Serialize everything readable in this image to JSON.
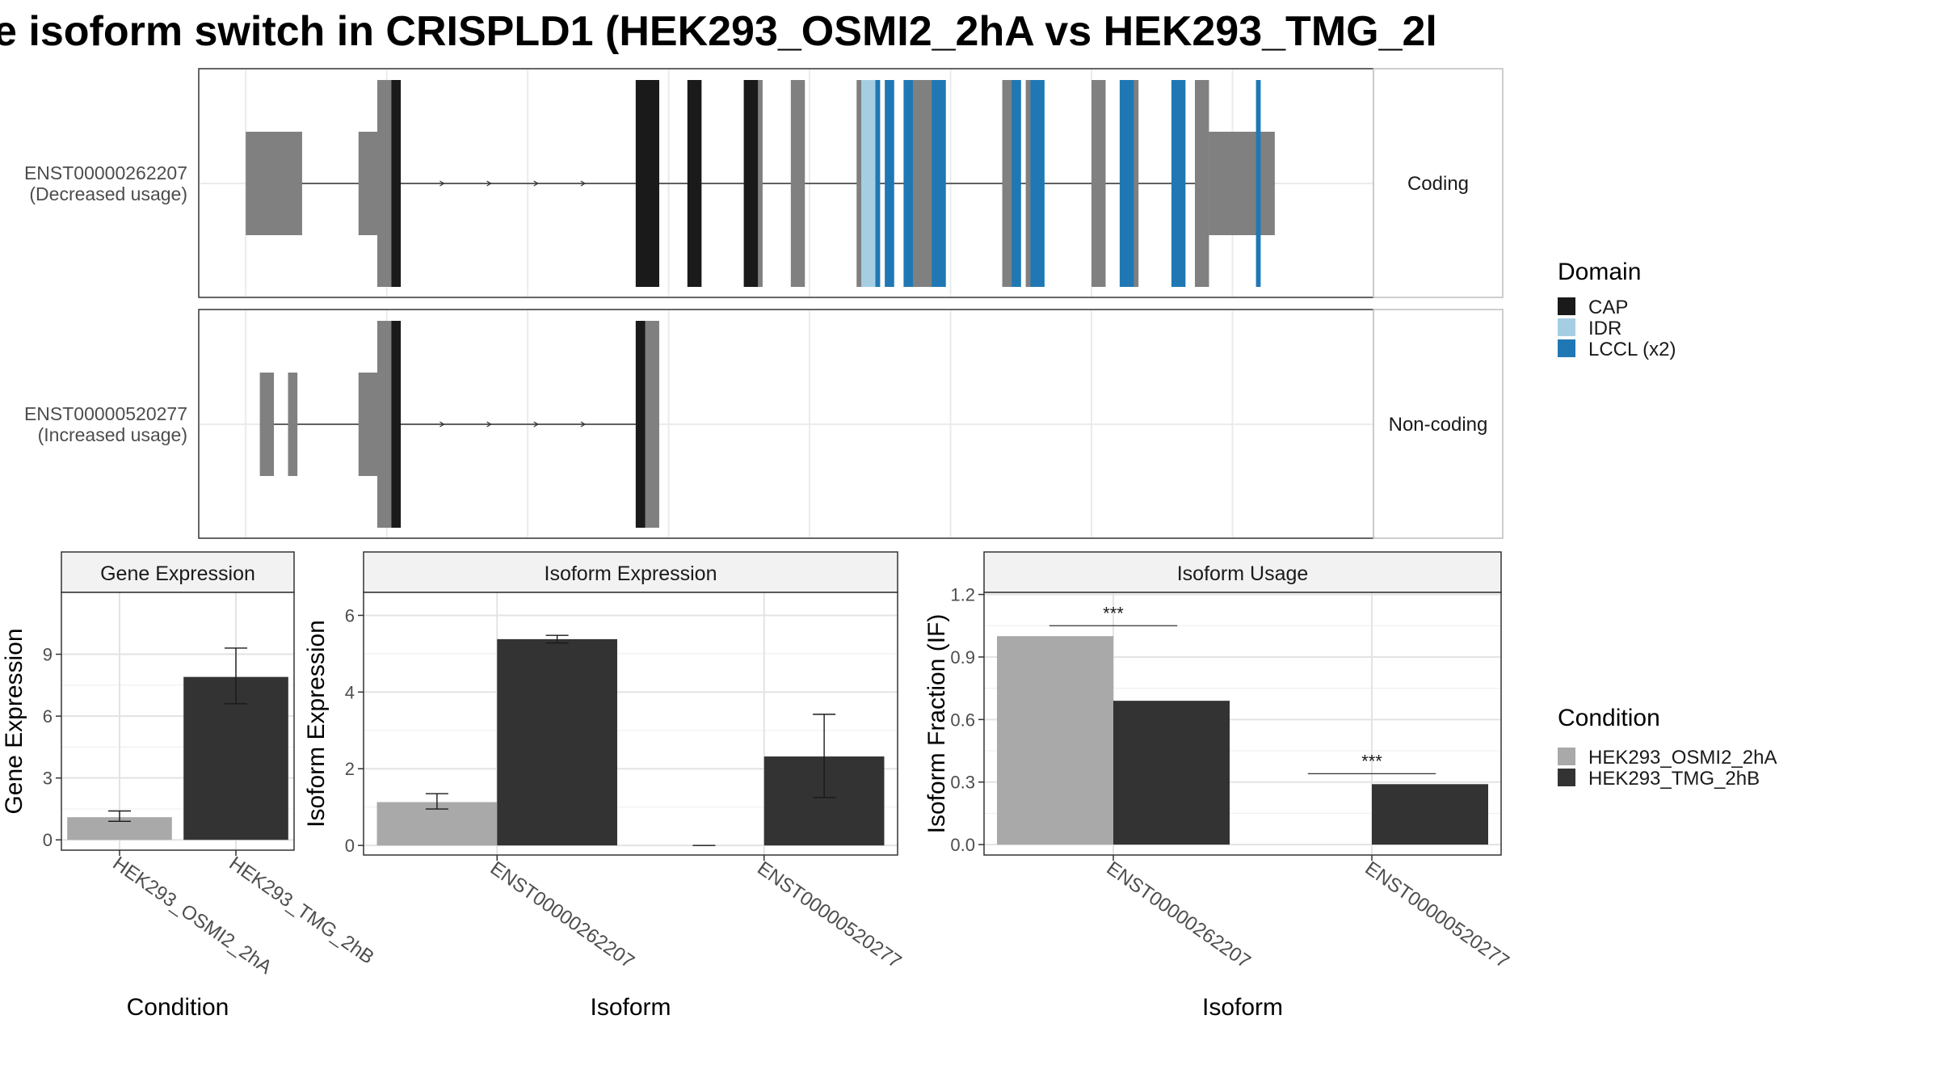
{
  "title": "e isoform switch in CRISPLD1 (HEK293_OSMI2_2hA vs HEK293_TMG_2l",
  "colors": {
    "cap": "#1a1a1a",
    "idr": "#a6cee3",
    "lccl": "#1f78b4",
    "exon": "#808080",
    "condition_a": "#a9a9a9",
    "condition_b": "#333333"
  },
  "structure": {
    "transcripts": [
      {
        "id": "ENST00000262207",
        "note": "(Decreased usage)",
        "strip": "Coding",
        "exons": [
          [
            100,
            112,
            "utr"
          ],
          [
            124,
            128,
            "utr"
          ],
          [
            128,
            132,
            "cds"
          ],
          [
            183,
            188,
            "cds"
          ],
          [
            194,
            197,
            "cds"
          ],
          [
            206,
            210,
            "cds"
          ],
          [
            216,
            219,
            "cds"
          ],
          [
            230,
            235,
            "cds"
          ],
          [
            241,
            247,
            "cds"
          ],
          [
            261,
            264,
            "cds"
          ],
          [
            266,
            269,
            "cds"
          ],
          [
            280,
            283,
            "cds"
          ],
          [
            286,
            290,
            "cds"
          ],
          [
            302,
            305,
            "cds"
          ],
          [
            305,
            319,
            "utr"
          ]
        ],
        "domains": [
          [
            131,
            133,
            "CAP"
          ],
          [
            183,
            188,
            "CAP"
          ],
          [
            194,
            197,
            "CAP"
          ],
          [
            206,
            209,
            "CAP"
          ],
          [
            231,
            234,
            "IDR"
          ],
          [
            234,
            235,
            "LCCL (x2)"
          ],
          [
            236,
            238,
            "LCCL (x2)"
          ],
          [
            240,
            242,
            "LCCL (x2)"
          ],
          [
            246,
            249,
            "LCCL (x2)"
          ],
          [
            263,
            265,
            "LCCL (x2)"
          ],
          [
            267,
            270,
            "LCCL (x2)"
          ],
          [
            286,
            289,
            "LCCL (x2)"
          ],
          [
            297,
            300,
            "LCCL (x2)"
          ],
          [
            315,
            316,
            "LCCL (x2)"
          ]
        ]
      },
      {
        "id": "ENST00000520277",
        "note": "(Increased usage)",
        "strip": "Non-coding",
        "exons": [
          [
            103,
            106,
            "utr"
          ],
          [
            109,
            111,
            "utr"
          ],
          [
            124,
            128,
            "utr"
          ],
          [
            128,
            132,
            "cds"
          ],
          [
            183,
            188,
            "cds"
          ]
        ],
        "domains": [
          [
            131,
            133,
            "CAP"
          ],
          [
            183,
            185,
            "CAP"
          ]
        ]
      }
    ],
    "xlim": [
      90,
      340
    ],
    "gridlines": [
      100,
      130,
      160,
      190,
      220,
      250,
      280,
      310,
      340
    ]
  },
  "legends": {
    "domain": {
      "title": "Domain",
      "items": [
        {
          "label": "CAP",
          "color": "#1a1a1a"
        },
        {
          "label": "IDR",
          "color": "#a6cee3"
        },
        {
          "label": "LCCL (x2)",
          "color": "#1f78b4"
        }
      ]
    },
    "condition": {
      "title": "Condition",
      "items": [
        {
          "label": "HEK293_OSMI2_2hA",
          "color": "#a9a9a9"
        },
        {
          "label": "HEK293_TMG_2hB",
          "color": "#333333"
        }
      ]
    }
  },
  "chart_data": [
    {
      "type": "bar",
      "title": "Gene Expression",
      "xlabel": "Condition",
      "ylabel": "Gene Expression",
      "categories": [
        "HEK293_OSMI2_2hA",
        "HEK293_TMG_2hB"
      ],
      "values": [
        1.1,
        7.9
      ],
      "errors": [
        [
          0.9,
          1.4
        ],
        [
          6.6,
          9.3
        ]
      ],
      "ylim": [
        -0.5,
        12
      ],
      "yticks": [
        "0",
        "3",
        "6",
        "9"
      ],
      "grid": true
    },
    {
      "type": "bar",
      "title": "Isoform Expression",
      "xlabel": "Isoform",
      "ylabel": "Isoform Expression",
      "categories": [
        "ENST00000262207",
        "ENST00000520277"
      ],
      "series": [
        {
          "name": "HEK293_OSMI2_2hA",
          "values": [
            1.13,
            0.0
          ],
          "errors": [
            [
              0.95,
              1.35
            ],
            [
              0.0,
              0.0
            ]
          ]
        },
        {
          "name": "HEK293_TMG_2hB",
          "values": [
            5.38,
            2.32
          ],
          "errors": [
            [
              5.28,
              5.48
            ],
            [
              1.25,
              3.42
            ]
          ]
        }
      ],
      "ylim": [
        -0.25,
        6.6
      ],
      "yticks": [
        "0",
        "2",
        "4",
        "6"
      ],
      "grid": true
    },
    {
      "type": "bar",
      "title": "Isoform Usage",
      "xlabel": "Isoform",
      "ylabel": "Isoform Fraction (IF)",
      "categories": [
        "ENST00000262207",
        "ENST00000520277"
      ],
      "series": [
        {
          "name": "HEK293_OSMI2_2hA",
          "values": [
            1.0,
            0.0
          ]
        },
        {
          "name": "HEK293_TMG_2hB",
          "values": [
            0.69,
            0.29
          ]
        }
      ],
      "ylim": [
        -0.05,
        1.21
      ],
      "yticks": [
        "0.0",
        "0.3",
        "0.6",
        "0.9",
        "1.2"
      ],
      "significance": [
        {
          "category": 0,
          "label": "***",
          "y": 1.05
        },
        {
          "category": 1,
          "label": "***",
          "y": 0.34
        }
      ],
      "grid": true
    }
  ]
}
